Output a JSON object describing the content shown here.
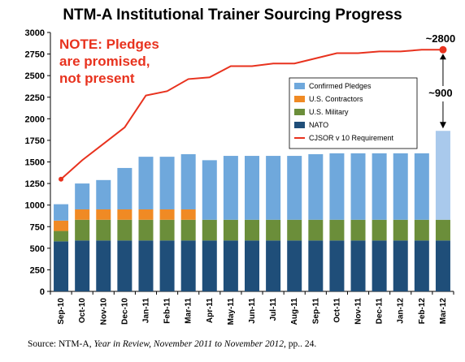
{
  "chart_data": {
    "type": "bar",
    "title": "NTM-A Institutional Trainer Sourcing Progress",
    "categories": [
      "Sep-10",
      "Oct-10",
      "Nov-10",
      "Dec-10",
      "Jan-11",
      "Feb-11",
      "Mar-11",
      "Apr-11",
      "May-11",
      "Jun-11",
      "Jul-11",
      "Aug-11",
      "Sep-11",
      "Oct-11",
      "Nov-11",
      "Dec-11",
      "Jan-12",
      "Feb-12",
      "Mar-12"
    ],
    "ylim": [
      0,
      3000
    ],
    "yticks": [
      0,
      250,
      500,
      750,
      1000,
      1250,
      1500,
      1750,
      2000,
      2250,
      2500,
      2750,
      3000
    ],
    "stacked": true,
    "series": [
      {
        "name": "NATO",
        "color": "#1f4e79",
        "values": [
          580,
          590,
          590,
          590,
          590,
          590,
          590,
          590,
          590,
          590,
          590,
          590,
          590,
          590,
          590,
          590,
          590,
          590,
          590
        ]
      },
      {
        "name": "U.S. Military",
        "color": "#6b8e3a",
        "values": [
          120,
          240,
          240,
          240,
          240,
          240,
          240,
          240,
          240,
          240,
          240,
          240,
          240,
          240,
          240,
          240,
          240,
          240,
          240
        ]
      },
      {
        "name": "U.S. Contractors",
        "color": "#f08a24",
        "values": [
          120,
          120,
          120,
          120,
          120,
          120,
          120,
          0,
          0,
          0,
          0,
          0,
          0,
          0,
          0,
          0,
          0,
          0,
          0
        ]
      },
      {
        "name": "Confirmed Pledges",
        "color": "#6fa8dc",
        "values": [
          190,
          300,
          340,
          480,
          610,
          610,
          640,
          690,
          740,
          740,
          740,
          740,
          760,
          770,
          770,
          770,
          770,
          770,
          1030
        ]
      },
      {
        "name": "CJSOR v 10 Requirement",
        "type": "line",
        "color": "#e8321e",
        "values": [
          1300,
          1520,
          1710,
          1900,
          2270,
          2320,
          2460,
          2480,
          2610,
          2610,
          2640,
          2640,
          2700,
          2760,
          2760,
          2780,
          2780,
          2800,
          2800
        ]
      }
    ],
    "annotations": [
      {
        "text": "NOTE: Pledges",
        "line": 1
      },
      {
        "text": "are promised,",
        "line": 2
      },
      {
        "text": "not present",
        "line": 3
      },
      {
        "text": "~2800",
        "at": "Mar-12"
      },
      {
        "text": "~900",
        "at": "Mar-12"
      }
    ],
    "legend_placement": "right"
  },
  "source": {
    "prefix": "Source: NTM-A, ",
    "title": "Year in Review, November 2011 to November 2012",
    "suffix": ", pp.. 24."
  }
}
